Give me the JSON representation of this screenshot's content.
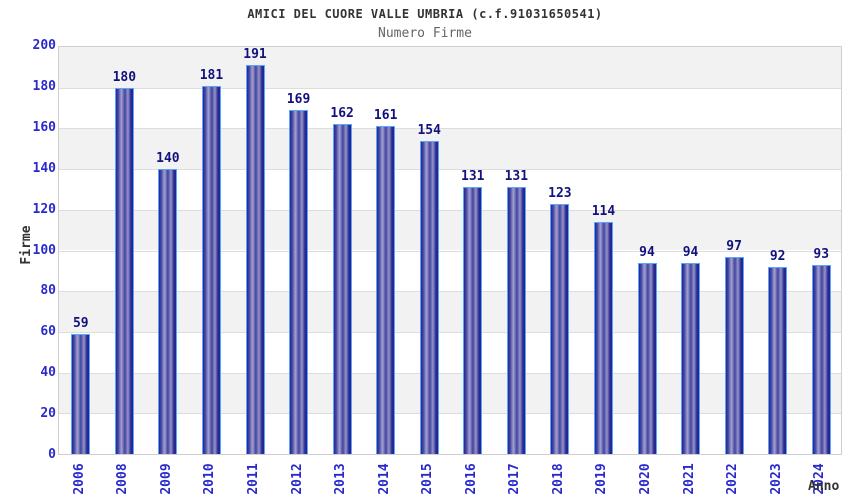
{
  "chart_data": {
    "type": "bar",
    "title": "AMICI DEL CUORE VALLE UMBRIA (c.f.91031650541)",
    "subtitle": "Numero Firme",
    "xlabel": "Anno",
    "ylabel": "Firme",
    "categories": [
      "2006",
      "2008",
      "2009",
      "2010",
      "2011",
      "2012",
      "2013",
      "2014",
      "2015",
      "2016",
      "2017",
      "2018",
      "2019",
      "2020",
      "2021",
      "2022",
      "2023",
      "2024"
    ],
    "values": [
      59,
      180,
      140,
      181,
      191,
      169,
      162,
      161,
      154,
      131,
      131,
      123,
      114,
      94,
      94,
      97,
      92,
      93
    ],
    "ylim": [
      0,
      200
    ],
    "ytick_step": 20,
    "yticks": [
      0,
      20,
      40,
      60,
      80,
      100,
      120,
      140,
      160,
      180,
      200
    ],
    "grid": "horizontal-bands",
    "legend": "none",
    "value_labels": true,
    "colors": {
      "bar_dark": "#25258e",
      "bar_light": "#a2a2d2",
      "bar_border": "#58a6ff",
      "tick_label": "#2a2acc",
      "value_label": "#12127d",
      "axis_title": "#333333",
      "title_text": "#333333",
      "subtitle_text": "#666666",
      "band_gray": "#f2f2f2",
      "band_white": "#ffffff",
      "grid_line": "#dddddd",
      "plot_border": "#cfcfcf"
    }
  }
}
